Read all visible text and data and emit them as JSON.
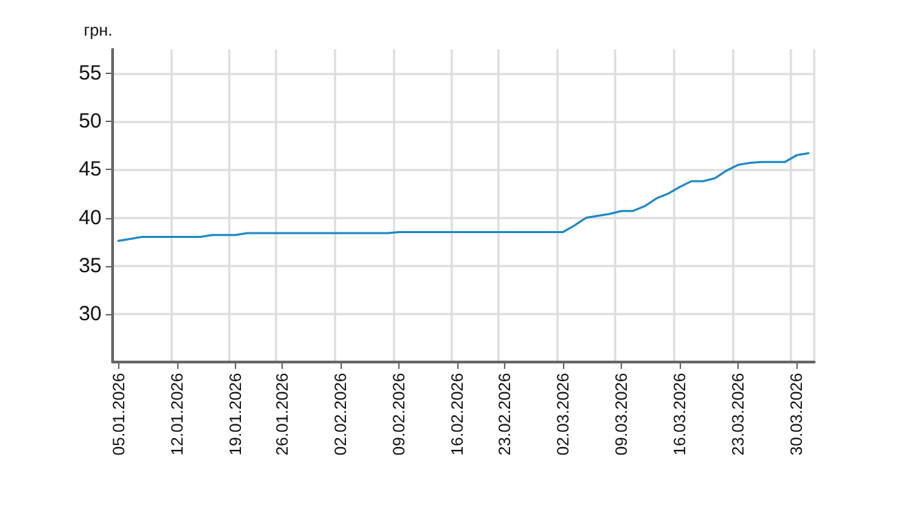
{
  "chart_data": {
    "type": "line",
    "ylabel": "грн.",
    "categories": [
      "05.01.2026",
      null,
      null,
      null,
      null,
      "12.01.2026",
      null,
      null,
      null,
      null,
      "19.01.2026",
      null,
      null,
      null,
      "26.01.2026",
      null,
      null,
      null,
      null,
      "02.02.2026",
      null,
      null,
      null,
      null,
      "09.02.2026",
      null,
      null,
      null,
      null,
      "16.02.2026",
      null,
      null,
      null,
      "23.02.2026",
      null,
      null,
      null,
      null,
      "02.03.2026",
      null,
      null,
      null,
      null,
      "09.03.2026",
      null,
      null,
      null,
      null,
      "16.03.2026",
      null,
      null,
      null,
      null,
      "23.03.2026",
      null,
      null,
      null,
      null,
      "30.03.2026",
      null
    ],
    "series": [
      {
        "color": "#1a8ac6",
        "values": [
          37.6,
          37.8,
          38.0,
          38.0,
          38.0,
          38.0,
          38.0,
          38.0,
          38.2,
          38.2,
          38.2,
          38.4,
          38.4,
          38.4,
          38.4,
          38.4,
          38.4,
          38.4,
          38.4,
          38.4,
          38.4,
          38.4,
          38.4,
          38.4,
          38.5,
          38.5,
          38.5,
          38.5,
          38.5,
          38.5,
          38.5,
          38.5,
          38.5,
          38.5,
          38.5,
          38.5,
          38.5,
          38.5,
          38.5,
          39.2,
          40.0,
          40.2,
          40.4,
          40.7,
          40.7,
          41.2,
          42.0,
          42.5,
          43.2,
          43.8,
          43.8,
          44.1,
          44.9,
          45.5,
          45.7,
          45.8,
          45.8,
          45.8,
          46.5,
          46.7
        ]
      }
    ],
    "ylim": [
      25,
      57.5
    ],
    "yticks": [
      30,
      35,
      40,
      45,
      50,
      55
    ],
    "grid": true,
    "marker": "none",
    "line_style": "solid"
  }
}
